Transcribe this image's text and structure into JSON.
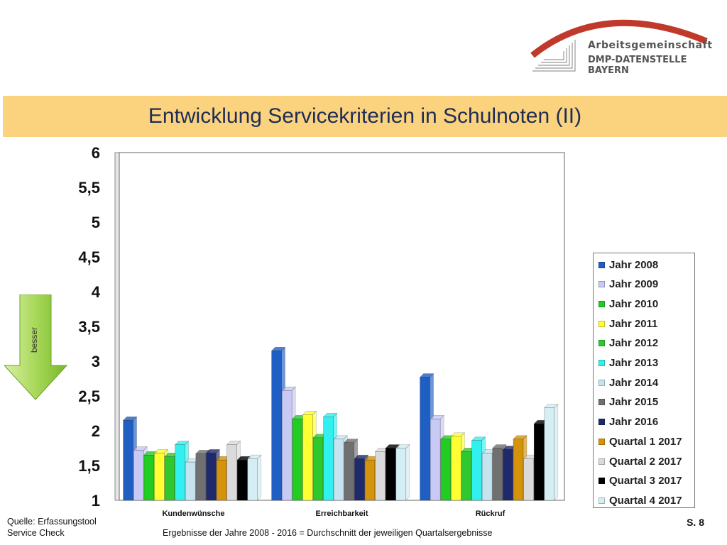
{
  "logo": {
    "line1": "Arbeitsgemeinschaft",
    "line2": "DMP-DATENSTELLE BAYERN",
    "arc_color": "#c0392b"
  },
  "title": "Entwicklung Servicekriterien in Schulnoten (II)",
  "arrow": {
    "label": "besser",
    "color": "#8cc63f"
  },
  "footer": {
    "source_line1": "Quelle: Erfassungstool",
    "source_line2": "Service Check",
    "note": "Ergebnisse der Jahre 2008 - 2016  = Durchschnitt der jeweiligen Quartalsergebnisse",
    "page": "S. 8"
  },
  "chart_data": {
    "type": "bar",
    "categories": [
      "Kundenwünsche",
      "Erreichbarkeit",
      "Rückruf"
    ],
    "ylim": [
      1,
      6
    ],
    "yticks": [
      "1",
      "1,5",
      "2",
      "2,5",
      "3",
      "3,5",
      "4",
      "4,5",
      "5",
      "5,5",
      "6"
    ],
    "grid": true,
    "legend_position": "right",
    "series": [
      {
        "name": "Jahr 2008",
        "color": "#1f5fc4",
        "values": [
          2.15,
          3.15,
          2.77
        ]
      },
      {
        "name": "Jahr 2009",
        "color": "#c9c9f5",
        "values": [
          1.72,
          2.58,
          2.17
        ]
      },
      {
        "name": "Jahr 2010",
        "color": "#22cc22",
        "values": [
          1.65,
          2.17,
          1.88
        ]
      },
      {
        "name": "Jahr 2011",
        "color": "#ffff33",
        "values": [
          1.68,
          2.23,
          1.92
        ]
      },
      {
        "name": "Jahr 2012",
        "color": "#2fc92f",
        "values": [
          1.63,
          1.9,
          1.7
        ]
      },
      {
        "name": "Jahr 2013",
        "color": "#33f0f0",
        "values": [
          1.8,
          2.2,
          1.86
        ]
      },
      {
        "name": "Jahr 2014",
        "color": "#c6e4ef",
        "values": [
          1.55,
          1.88,
          1.68
        ]
      },
      {
        "name": "Jahr 2015",
        "color": "#707070",
        "values": [
          1.67,
          1.83,
          1.75
        ]
      },
      {
        "name": "Jahr 2016",
        "color": "#1f2a6b",
        "values": [
          1.68,
          1.6,
          1.73
        ]
      },
      {
        "name": "Quartal 1 2017",
        "color": "#d4930a",
        "values": [
          1.58,
          1.58,
          1.88
        ]
      },
      {
        "name": "Quartal 2 2017",
        "color": "#dadada",
        "values": [
          1.8,
          1.7,
          1.6
        ]
      },
      {
        "name": "Quartal 3 2017",
        "color": "#000000",
        "values": [
          1.58,
          1.75,
          2.1
        ]
      },
      {
        "name": "Quartal 4 2017",
        "color": "#d4eef4",
        "values": [
          1.6,
          1.75,
          2.33
        ]
      }
    ]
  }
}
